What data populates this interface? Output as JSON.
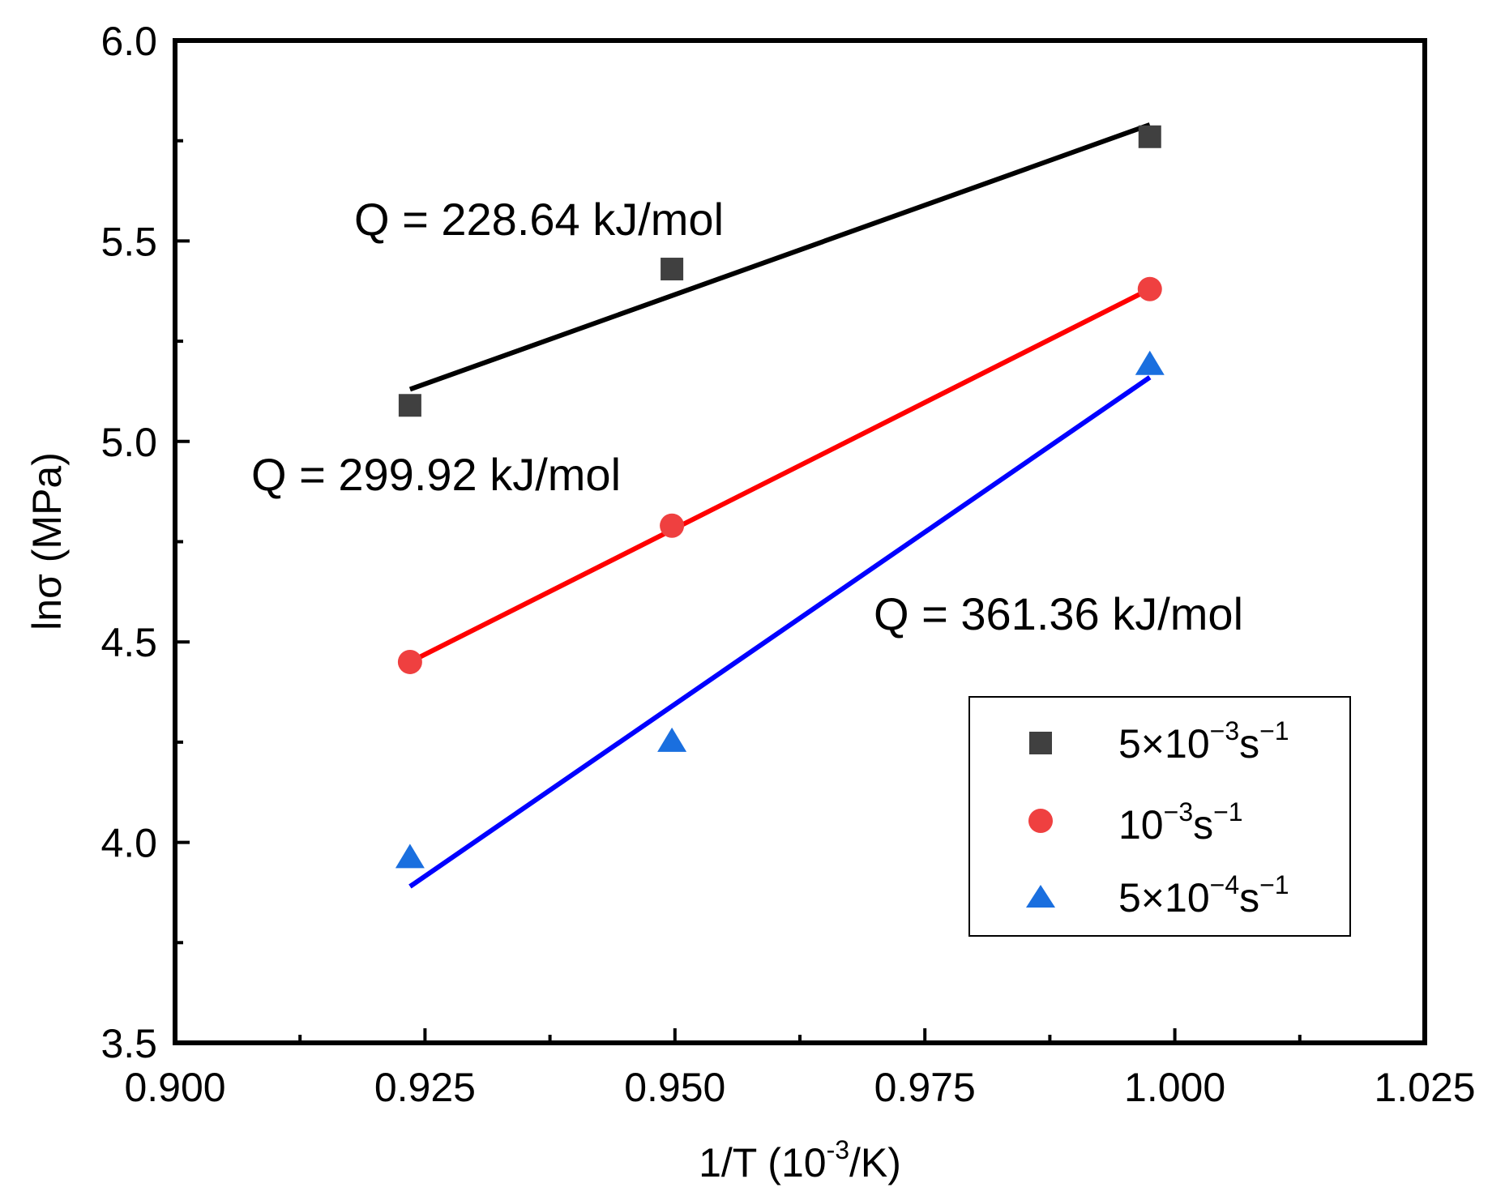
{
  "chart_data": {
    "type": "scatter",
    "title": "",
    "xlabel": "1/T (10⁻³/K)",
    "ylabel": "lnσ (MPa)",
    "xlim": [
      0.9,
      1.025
    ],
    "ylim": [
      3.5,
      6.0
    ],
    "xticks": [
      0.9,
      0.925,
      0.95,
      0.975,
      1.0,
      1.025
    ],
    "xtick_labels": [
      "0.900",
      "0.925",
      "0.950",
      "0.975",
      "1.000",
      "1.025"
    ],
    "yticks": [
      3.5,
      4.0,
      4.5,
      5.0,
      5.5,
      6.0
    ],
    "ytick_labels": [
      "3.5",
      "4.0",
      "4.5",
      "5.0",
      "5.5",
      "6.0"
    ],
    "series": [
      {
        "name": "5×10⁻³s⁻¹",
        "marker": "square",
        "marker_color": "#404040",
        "line_color": "#000000",
        "x": [
          0.9235,
          0.9497,
          0.9975
        ],
        "y": [
          5.09,
          5.43,
          5.76
        ],
        "fit": {
          "x": [
            0.9235,
            0.9975
          ],
          "y": [
            5.13,
            5.79
          ]
        }
      },
      {
        "name": "10⁻³s⁻¹",
        "marker": "circle",
        "marker_color": "#ef4040",
        "line_color": "#ff0000",
        "x": [
          0.9235,
          0.9497,
          0.9975
        ],
        "y": [
          4.45,
          4.79,
          5.38
        ],
        "fit": {
          "x": [
            0.9235,
            0.9975
          ],
          "y": [
            4.45,
            5.38
          ]
        }
      },
      {
        "name": "5×10⁻⁴s⁻¹",
        "marker": "triangle",
        "marker_color": "#1a6fdf",
        "line_color": "#0000ff",
        "x": [
          0.9235,
          0.9497,
          0.9975
        ],
        "y": [
          3.96,
          4.25,
          5.19
        ],
        "fit": {
          "x": [
            0.9235,
            0.9975
          ],
          "y": [
            3.89,
            5.16
          ]
        }
      }
    ],
    "annotations": [
      "Q = 228.64 kJ/mol",
      "Q = 299.92 kJ/mol",
      "Q = 361.36 kJ/mol"
    ],
    "legend_position": "lower-right",
    "grid": false
  }
}
